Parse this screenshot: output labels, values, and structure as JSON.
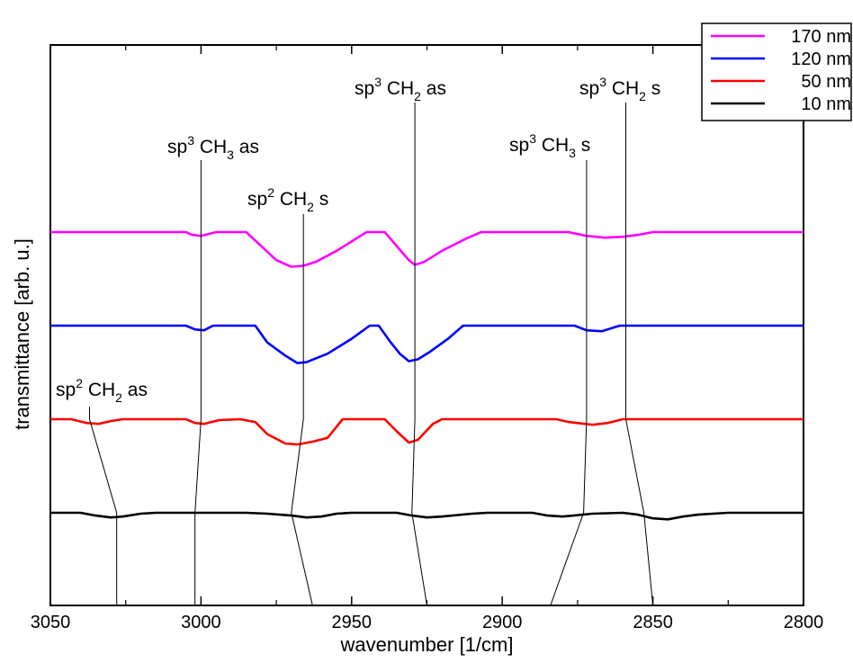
{
  "chart_data": {
    "type": "line",
    "xlabel": "wavenumber [1/cm]",
    "ylabel": "transmittance [arb. u.]",
    "xlim": [
      3050,
      2800
    ],
    "x_reversed": true,
    "x_ticks": [
      "3050",
      "3000",
      "2950",
      "2900",
      "2850",
      "2800"
    ],
    "y_ticks_labeled": false,
    "grid": false,
    "legend_position": "top-right",
    "series": [
      {
        "name": "170 nm",
        "color": "#ff00ff",
        "baseline": 3.0,
        "points": [
          [
            3050,
            3.0
          ],
          [
            3005,
            3.0
          ],
          [
            3003,
            2.97
          ],
          [
            3000,
            2.96
          ],
          [
            2995,
            3.0
          ],
          [
            2985,
            3.0
          ],
          [
            2980,
            2.85
          ],
          [
            2975,
            2.7
          ],
          [
            2970,
            2.63
          ],
          [
            2966,
            2.64
          ],
          [
            2962,
            2.68
          ],
          [
            2955,
            2.8
          ],
          [
            2950,
            2.9
          ],
          [
            2945,
            3.0
          ],
          [
            2939,
            3.0
          ],
          [
            2935,
            2.85
          ],
          [
            2931,
            2.7
          ],
          [
            2929,
            2.65
          ],
          [
            2926,
            2.68
          ],
          [
            2920,
            2.8
          ],
          [
            2912,
            2.93
          ],
          [
            2907,
            3.0
          ],
          [
            2878,
            3.0
          ],
          [
            2872,
            2.96
          ],
          [
            2866,
            2.94
          ],
          [
            2860,
            2.95
          ],
          [
            2855,
            2.97
          ],
          [
            2850,
            3.0
          ],
          [
            2800,
            3.0
          ]
        ]
      },
      {
        "name": "120 nm",
        "color": "#0000ff",
        "baseline": 2.0,
        "points": [
          [
            3050,
            2.0
          ],
          [
            3005,
            2.0
          ],
          [
            3002,
            1.96
          ],
          [
            2999,
            1.95
          ],
          [
            2996,
            2.0
          ],
          [
            2982,
            2.0
          ],
          [
            2978,
            1.82
          ],
          [
            2972,
            1.68
          ],
          [
            2968,
            1.6
          ],
          [
            2965,
            1.61
          ],
          [
            2958,
            1.7
          ],
          [
            2950,
            1.86
          ],
          [
            2944,
            2.0
          ],
          [
            2941,
            2.0
          ],
          [
            2937,
            1.82
          ],
          [
            2934,
            1.7
          ],
          [
            2931,
            1.62
          ],
          [
            2928,
            1.64
          ],
          [
            2924,
            1.72
          ],
          [
            2918,
            1.86
          ],
          [
            2913,
            2.0
          ],
          [
            2876,
            2.0
          ],
          [
            2872,
            1.95
          ],
          [
            2867,
            1.94
          ],
          [
            2864,
            1.97
          ],
          [
            2861,
            2.0
          ],
          [
            2800,
            2.0
          ]
        ]
      },
      {
        "name": "50 nm",
        "color": "#ff0000",
        "baseline": 1.0,
        "points": [
          [
            3050,
            1.0
          ],
          [
            3043,
            1.0
          ],
          [
            3038,
            0.96
          ],
          [
            3034,
            0.95
          ],
          [
            3030,
            0.98
          ],
          [
            3026,
            1.0
          ],
          [
            3005,
            1.0
          ],
          [
            3002,
            0.96
          ],
          [
            2999,
            0.95
          ],
          [
            2994,
            0.99
          ],
          [
            2987,
            1.0
          ],
          [
            2982,
            0.97
          ],
          [
            2978,
            0.84
          ],
          [
            2972,
            0.74
          ],
          [
            2968,
            0.73
          ],
          [
            2963,
            0.76
          ],
          [
            2958,
            0.8
          ],
          [
            2953,
            1.0
          ],
          [
            2939,
            1.0
          ],
          [
            2935,
            0.87
          ],
          [
            2931,
            0.75
          ],
          [
            2928,
            0.78
          ],
          [
            2923,
            0.95
          ],
          [
            2920,
            1.0
          ],
          [
            2882,
            1.0
          ],
          [
            2878,
            0.97
          ],
          [
            2870,
            0.94
          ],
          [
            2865,
            0.96
          ],
          [
            2860,
            1.0
          ],
          [
            2800,
            1.0
          ]
        ]
      },
      {
        "name": "10 nm",
        "color": "#000000",
        "baseline": 0.0,
        "points": [
          [
            3050,
            0.0
          ],
          [
            3040,
            0.0
          ],
          [
            3035,
            -0.03
          ],
          [
            3030,
            -0.05
          ],
          [
            3026,
            -0.04
          ],
          [
            3020,
            -0.01
          ],
          [
            3015,
            0.0
          ],
          [
            2985,
            0.0
          ],
          [
            2978,
            -0.01
          ],
          [
            2970,
            -0.03
          ],
          [
            2965,
            -0.05
          ],
          [
            2960,
            -0.04
          ],
          [
            2955,
            -0.01
          ],
          [
            2950,
            0.0
          ],
          [
            2935,
            0.0
          ],
          [
            2930,
            -0.03
          ],
          [
            2925,
            -0.05
          ],
          [
            2920,
            -0.04
          ],
          [
            2910,
            -0.01
          ],
          [
            2905,
            0.0
          ],
          [
            2890,
            0.0
          ],
          [
            2885,
            -0.03
          ],
          [
            2880,
            -0.04
          ],
          [
            2870,
            -0.01
          ],
          [
            2860,
            0.0
          ],
          [
            2855,
            -0.02
          ],
          [
            2850,
            -0.06
          ],
          [
            2845,
            -0.07
          ],
          [
            2840,
            -0.04
          ],
          [
            2835,
            -0.02
          ],
          [
            2830,
            -0.01
          ],
          [
            2825,
            0.0
          ],
          [
            2800,
            0.0
          ]
        ]
      }
    ],
    "annotations": [
      {
        "id": "sp2-ch2-as",
        "prefix": "sp",
        "sup": "2",
        "group": " CH",
        "sub": "2",
        "suffix": " as",
        "guide_x": [
          3037,
          3028,
          3028
        ]
      },
      {
        "id": "sp3-ch3-as",
        "prefix": "sp",
        "sup": "3",
        "group": " CH",
        "sub": "3",
        "suffix": " as",
        "guide_x": [
          3000,
          3002,
          3002
        ]
      },
      {
        "id": "sp2-ch2-s",
        "prefix": "sp",
        "sup": "2",
        "group": " CH",
        "sub": "2",
        "suffix": " s",
        "guide_x": [
          2966,
          2970,
          2963
        ]
      },
      {
        "id": "sp3-ch2-as",
        "prefix": "sp",
        "sup": "3",
        "group": " CH",
        "sub": "2",
        "suffix": " as",
        "guide_x": [
          2929,
          2930,
          2925
        ]
      },
      {
        "id": "sp3-ch3-s",
        "prefix": "sp",
        "sup": "3",
        "group": " CH",
        "sub": "3",
        "suffix": " s",
        "guide_x": [
          2872,
          2873,
          2884
        ]
      },
      {
        "id": "sp3-ch2-s",
        "prefix": "sp",
        "sup": "3",
        "group": " CH",
        "sub": "2",
        "suffix": " s",
        "guide_x": [
          2859,
          2853,
          2850
        ]
      }
    ]
  }
}
